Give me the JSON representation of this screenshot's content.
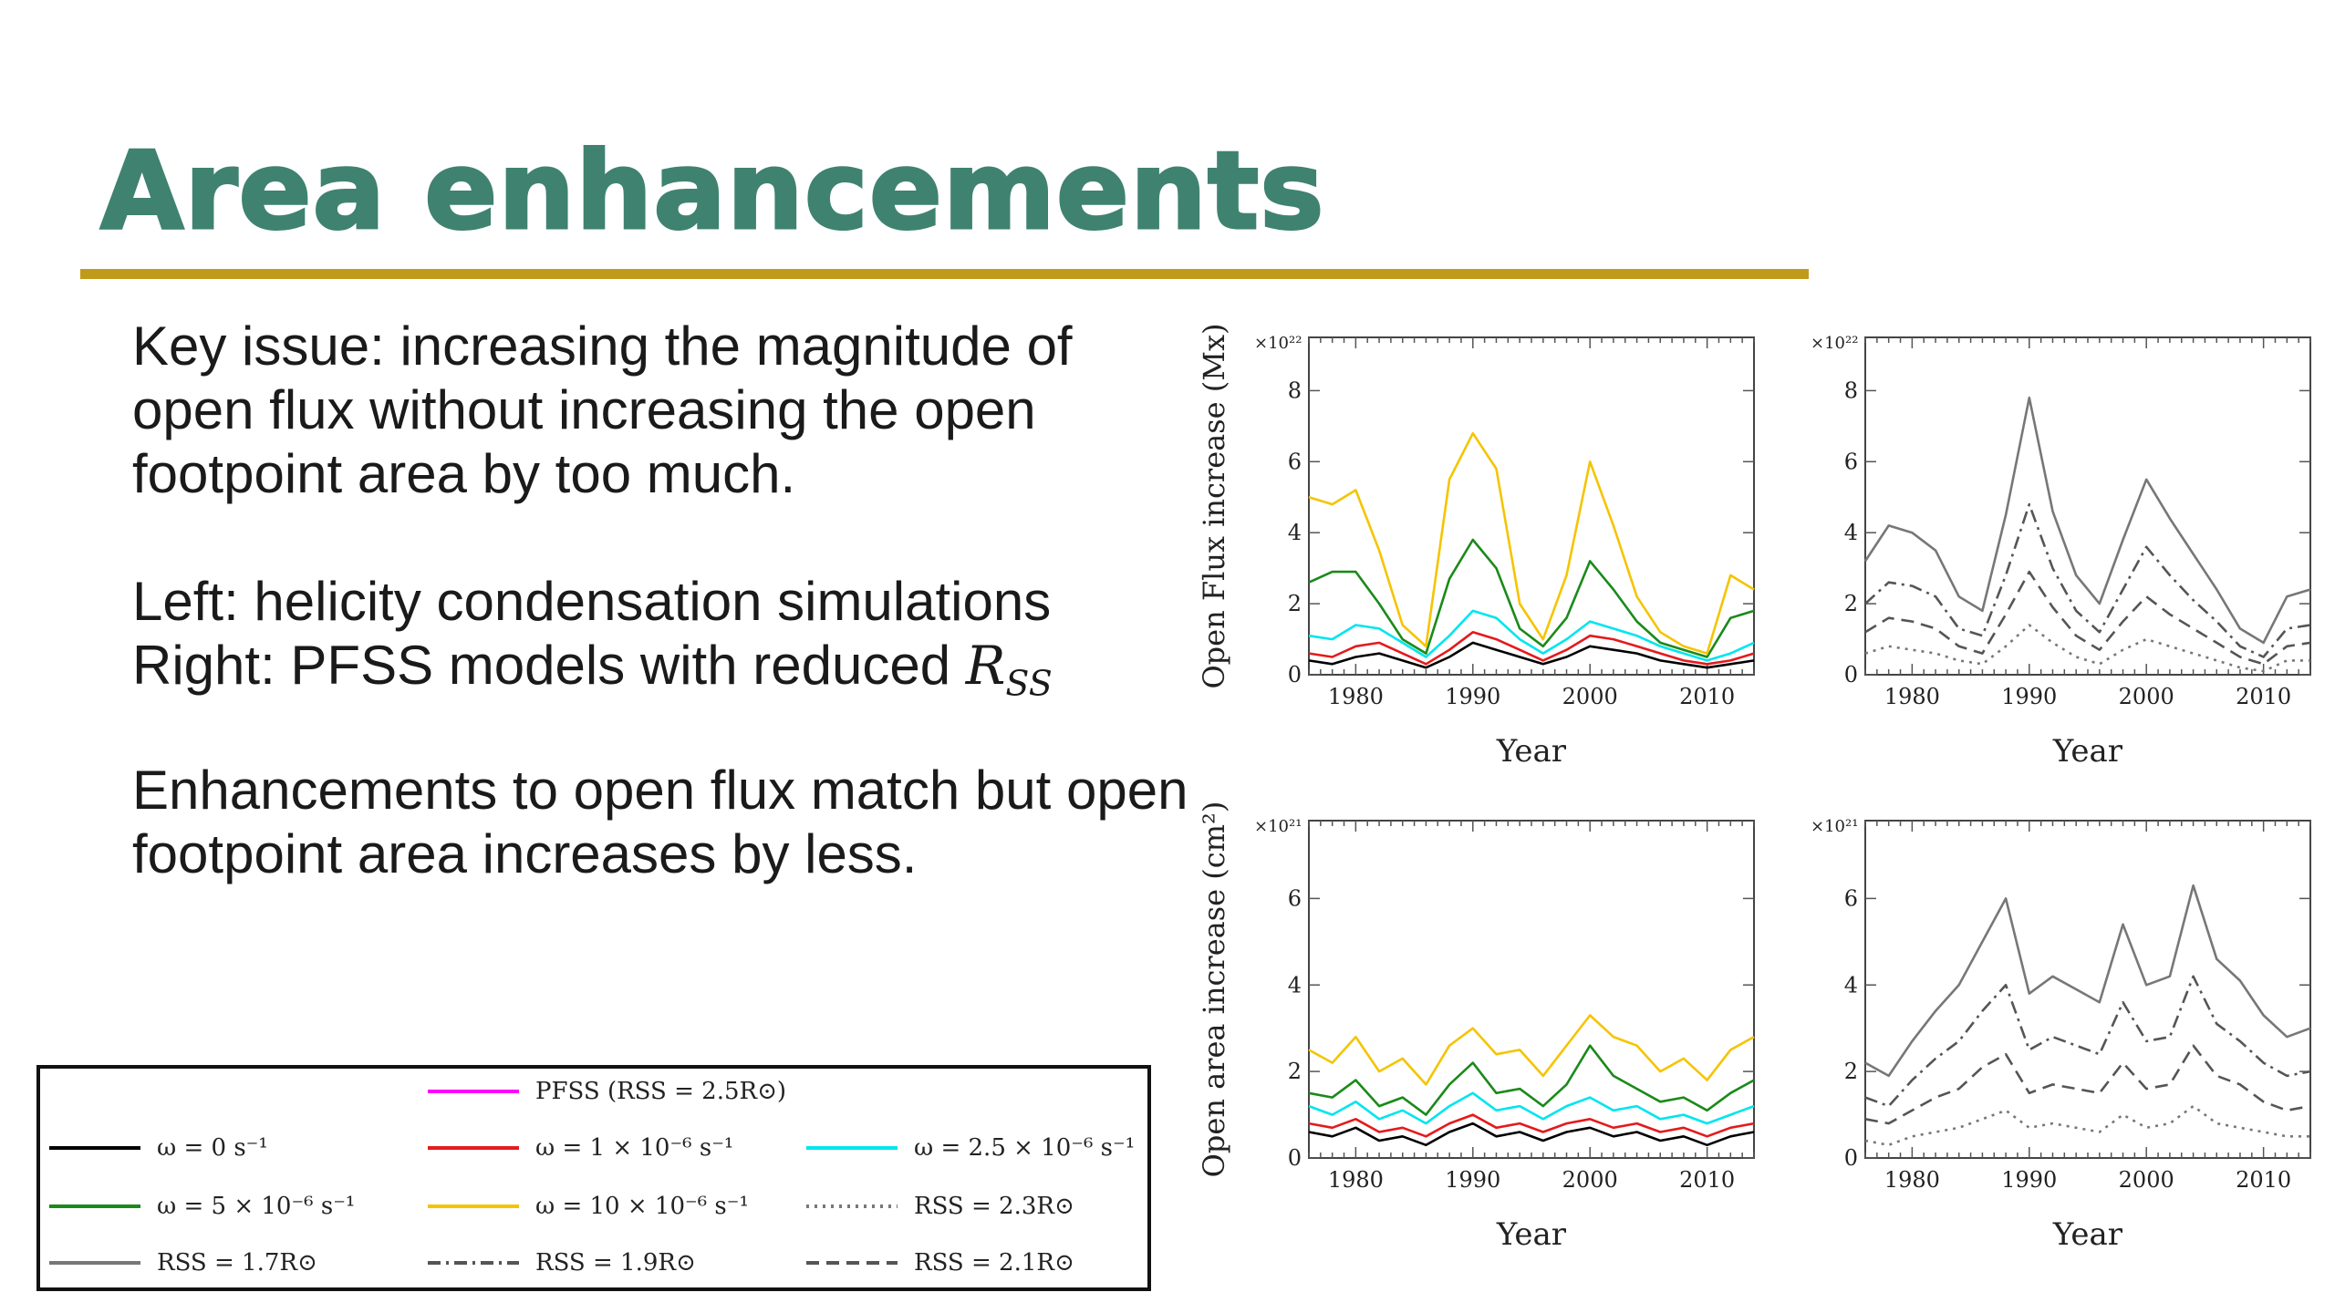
{
  "slide": {
    "title": "Area enhancements",
    "para1": "Key issue: increasing the magnitude of open flux without increasing the open footpoint area by too much.",
    "para2_line1": "Left: helicity condensation simulations",
    "para2_line2_prefix": "Right: PFSS models with reduced ",
    "para2_math_main": "R",
    "para2_math_sub": "SS",
    "para3": "Enhancements to open flux match but open footpoint area increases by less.",
    "colors": {
      "title": "#3f8270",
      "rule": "#c09b1a"
    }
  },
  "legend": {
    "items": [
      {
        "label": "PFSS (RSS = 2.5R⊙)",
        "color": "#ff00ff",
        "dash": "solid"
      },
      {
        "label": "ω = 0 s⁻¹",
        "color": "#000000",
        "dash": "solid"
      },
      {
        "label": "ω = 1 × 10⁻⁶ s⁻¹",
        "color": "#e41a1c",
        "dash": "solid"
      },
      {
        "label": "ω = 2.5 × 10⁻⁶ s⁻¹",
        "color": "#00e5ee",
        "dash": "solid"
      },
      {
        "label": "ω = 5 × 10⁻⁶ s⁻¹",
        "color": "#1a8a1a",
        "dash": "solid"
      },
      {
        "label": "ω = 10 × 10⁻⁶ s⁻¹",
        "color": "#f5c400",
        "dash": "solid"
      },
      {
        "label": "RSS = 2.3R⊙",
        "color": "#777777",
        "dash": "dotted"
      },
      {
        "label": "RSS = 1.7R⊙",
        "color": "#777777",
        "dash": "solid"
      },
      {
        "label": "RSS = 1.9R⊙",
        "color": "#555555",
        "dash": "dashdot"
      },
      {
        "label": "RSS = 2.1R⊙",
        "color": "#555555",
        "dash": "dashed"
      }
    ]
  },
  "chart_data": [
    {
      "type": "line",
      "ylabel": "Open Flux increase (Mx)",
      "xlabel": "Year",
      "multiplier": "×10²²",
      "xlim": [
        1976,
        2014
      ],
      "ylim": [
        0,
        9.5
      ],
      "xticks": [
        1980,
        1990,
        2000,
        2010
      ],
      "yticks": [
        0,
        2,
        4,
        6,
        8
      ],
      "series": [
        {
          "name": "ω = 0 s⁻¹",
          "color": "#000000",
          "dash": "solid",
          "x": [
            1976,
            1978,
            1980,
            1982,
            1984,
            1986,
            1988,
            1990,
            1992,
            1994,
            1996,
            1998,
            2000,
            2002,
            2004,
            2006,
            2008,
            2010,
            2012,
            2014
          ],
          "y": [
            0.4,
            0.3,
            0.5,
            0.6,
            0.4,
            0.2,
            0.5,
            0.9,
            0.7,
            0.5,
            0.3,
            0.5,
            0.8,
            0.7,
            0.6,
            0.4,
            0.3,
            0.2,
            0.3,
            0.4
          ]
        },
        {
          "name": "ω = 1 × 10⁻⁶ s⁻¹",
          "color": "#e41a1c",
          "dash": "solid",
          "x": [
            1976,
            1978,
            1980,
            1982,
            1984,
            1986,
            1988,
            1990,
            1992,
            1994,
            1996,
            1998,
            2000,
            2002,
            2004,
            2006,
            2008,
            2010,
            2012,
            2014
          ],
          "y": [
            0.6,
            0.5,
            0.8,
            0.9,
            0.6,
            0.3,
            0.7,
            1.2,
            1.0,
            0.7,
            0.4,
            0.7,
            1.1,
            1.0,
            0.8,
            0.6,
            0.4,
            0.3,
            0.4,
            0.6
          ]
        },
        {
          "name": "ω = 2.5 × 10⁻⁶ s⁻¹",
          "color": "#00e5ee",
          "dash": "solid",
          "x": [
            1976,
            1978,
            1980,
            1982,
            1984,
            1986,
            1988,
            1990,
            1992,
            1994,
            1996,
            1998,
            2000,
            2002,
            2004,
            2006,
            2008,
            2010,
            2012,
            2014
          ],
          "y": [
            1.1,
            1.0,
            1.4,
            1.3,
            0.9,
            0.5,
            1.1,
            1.8,
            1.6,
            1.0,
            0.6,
            1.0,
            1.5,
            1.3,
            1.1,
            0.8,
            0.6,
            0.4,
            0.6,
            0.9
          ]
        },
        {
          "name": "ω = 5 × 10⁻⁶ s⁻¹",
          "color": "#1a8a1a",
          "dash": "solid",
          "x": [
            1976,
            1978,
            1980,
            1982,
            1984,
            1986,
            1988,
            1990,
            1992,
            1994,
            1996,
            1998,
            2000,
            2002,
            2004,
            2006,
            2008,
            2010,
            2012,
            2014
          ],
          "y": [
            2.6,
            2.9,
            2.9,
            2.0,
            1.0,
            0.6,
            2.7,
            3.8,
            3.0,
            1.3,
            0.8,
            1.6,
            3.2,
            2.4,
            1.5,
            0.9,
            0.7,
            0.5,
            1.6,
            1.8
          ]
        },
        {
          "name": "ω = 10 × 10⁻⁶ s⁻¹",
          "color": "#f5c400",
          "dash": "solid",
          "x": [
            1976,
            1978,
            1980,
            1982,
            1984,
            1986,
            1988,
            1990,
            1992,
            1994,
            1996,
            1998,
            2000,
            2002,
            2004,
            2006,
            2008,
            2010,
            2012,
            2014
          ],
          "y": [
            5.0,
            4.8,
            5.2,
            3.5,
            1.4,
            0.8,
            5.5,
            6.8,
            5.8,
            2.0,
            1.0,
            2.8,
            6.0,
            4.2,
            2.2,
            1.2,
            0.8,
            0.6,
            2.8,
            2.4
          ]
        }
      ]
    },
    {
      "type": "line",
      "ylabel": "",
      "xlabel": "Year",
      "multiplier": "×10²²",
      "xlim": [
        1976,
        2014
      ],
      "ylim": [
        0,
        9.5
      ],
      "xticks": [
        1980,
        1990,
        2000,
        2010
      ],
      "yticks": [
        0,
        2,
        4,
        6,
        8
      ],
      "series": [
        {
          "name": "RSS = 1.7R⊙",
          "color": "#777777",
          "dash": "solid",
          "x": [
            1976,
            1978,
            1980,
            1982,
            1984,
            1986,
            1988,
            1990,
            1992,
            1994,
            1996,
            1998,
            2000,
            2002,
            2004,
            2006,
            2008,
            2010,
            2012,
            2014
          ],
          "y": [
            3.2,
            4.2,
            4.0,
            3.5,
            2.2,
            1.8,
            4.5,
            7.8,
            4.6,
            2.8,
            2.0,
            3.8,
            5.5,
            4.4,
            3.4,
            2.4,
            1.3,
            0.9,
            2.2,
            2.4
          ]
        },
        {
          "name": "RSS = 1.9R⊙",
          "color": "#555555",
          "dash": "dashdot",
          "x": [
            1976,
            1978,
            1980,
            1982,
            1984,
            1986,
            1988,
            1990,
            1992,
            1994,
            1996,
            1998,
            2000,
            2002,
            2004,
            2006,
            2008,
            2010,
            2012,
            2014
          ],
          "y": [
            2.0,
            2.6,
            2.5,
            2.2,
            1.3,
            1.1,
            2.8,
            4.8,
            3.0,
            1.8,
            1.2,
            2.4,
            3.6,
            2.8,
            2.1,
            1.5,
            0.8,
            0.5,
            1.3,
            1.4
          ]
        },
        {
          "name": "RSS = 2.1R⊙",
          "color": "#555555",
          "dash": "dashed",
          "x": [
            1976,
            1978,
            1980,
            1982,
            1984,
            1986,
            1988,
            1990,
            1992,
            1994,
            1996,
            1998,
            2000,
            2002,
            2004,
            2006,
            2008,
            2010,
            2012,
            2014
          ],
          "y": [
            1.2,
            1.6,
            1.5,
            1.3,
            0.8,
            0.6,
            1.7,
            2.9,
            1.9,
            1.1,
            0.7,
            1.5,
            2.2,
            1.7,
            1.3,
            0.9,
            0.5,
            0.3,
            0.8,
            0.9
          ]
        },
        {
          "name": "RSS = 2.3R⊙",
          "color": "#777777",
          "dash": "dotted",
          "x": [
            1976,
            1978,
            1980,
            1982,
            1984,
            1986,
            1988,
            1990,
            1992,
            1994,
            1996,
            1998,
            2000,
            2002,
            2004,
            2006,
            2008,
            2010,
            2012,
            2014
          ],
          "y": [
            0.6,
            0.8,
            0.7,
            0.6,
            0.4,
            0.3,
            0.8,
            1.4,
            0.9,
            0.5,
            0.3,
            0.7,
            1.0,
            0.8,
            0.6,
            0.4,
            0.2,
            0.1,
            0.4,
            0.4
          ]
        }
      ]
    },
    {
      "type": "line",
      "ylabel": "Open area increase (cm²)",
      "xlabel": "Year",
      "multiplier": "×10²¹",
      "xlim": [
        1976,
        2014
      ],
      "ylim": [
        0,
        7.8
      ],
      "xticks": [
        1980,
        1990,
        2000,
        2010
      ],
      "yticks": [
        0,
        2,
        4,
        6
      ],
      "series": [
        {
          "name": "ω = 0 s⁻¹",
          "color": "#000000",
          "dash": "solid",
          "x": [
            1976,
            1978,
            1980,
            1982,
            1984,
            1986,
            1988,
            1990,
            1992,
            1994,
            1996,
            1998,
            2000,
            2002,
            2004,
            2006,
            2008,
            2010,
            2012,
            2014
          ],
          "y": [
            0.6,
            0.5,
            0.7,
            0.4,
            0.5,
            0.3,
            0.6,
            0.8,
            0.5,
            0.6,
            0.4,
            0.6,
            0.7,
            0.5,
            0.6,
            0.4,
            0.5,
            0.3,
            0.5,
            0.6
          ]
        },
        {
          "name": "ω = 1 × 10⁻⁶ s⁻¹",
          "color": "#e41a1c",
          "dash": "solid",
          "x": [
            1976,
            1978,
            1980,
            1982,
            1984,
            1986,
            1988,
            1990,
            1992,
            1994,
            1996,
            1998,
            2000,
            2002,
            2004,
            2006,
            2008,
            2010,
            2012,
            2014
          ],
          "y": [
            0.8,
            0.7,
            0.9,
            0.6,
            0.7,
            0.5,
            0.8,
            1.0,
            0.7,
            0.8,
            0.6,
            0.8,
            0.9,
            0.7,
            0.8,
            0.6,
            0.7,
            0.5,
            0.7,
            0.8
          ]
        },
        {
          "name": "ω = 2.5 × 10⁻⁶ s⁻¹",
          "color": "#00e5ee",
          "dash": "solid",
          "x": [
            1976,
            1978,
            1980,
            1982,
            1984,
            1986,
            1988,
            1990,
            1992,
            1994,
            1996,
            1998,
            2000,
            2002,
            2004,
            2006,
            2008,
            2010,
            2012,
            2014
          ],
          "y": [
            1.2,
            1.0,
            1.3,
            0.9,
            1.1,
            0.8,
            1.2,
            1.5,
            1.1,
            1.2,
            0.9,
            1.2,
            1.4,
            1.1,
            1.2,
            0.9,
            1.0,
            0.8,
            1.0,
            1.2
          ]
        },
        {
          "name": "ω = 5 × 10⁻⁶ s⁻¹",
          "color": "#1a8a1a",
          "dash": "solid",
          "x": [
            1976,
            1978,
            1980,
            1982,
            1984,
            1986,
            1988,
            1990,
            1992,
            1994,
            1996,
            1998,
            2000,
            2002,
            2004,
            2006,
            2008,
            2010,
            2012,
            2014
          ],
          "y": [
            1.5,
            1.4,
            1.8,
            1.2,
            1.4,
            1.0,
            1.7,
            2.2,
            1.5,
            1.6,
            1.2,
            1.7,
            2.6,
            1.9,
            1.6,
            1.3,
            1.4,
            1.1,
            1.5,
            1.8
          ]
        },
        {
          "name": "ω = 10 × 10⁻⁶ s⁻¹",
          "color": "#f5c400",
          "dash": "solid",
          "x": [
            1976,
            1978,
            1980,
            1982,
            1984,
            1986,
            1988,
            1990,
            1992,
            1994,
            1996,
            1998,
            2000,
            2002,
            2004,
            2006,
            2008,
            2010,
            2012,
            2014
          ],
          "y": [
            2.5,
            2.2,
            2.8,
            2.0,
            2.3,
            1.7,
            2.6,
            3.0,
            2.4,
            2.5,
            1.9,
            2.6,
            3.3,
            2.8,
            2.6,
            2.0,
            2.3,
            1.8,
            2.5,
            2.8
          ]
        }
      ]
    },
    {
      "type": "line",
      "ylabel": "",
      "xlabel": "Year",
      "multiplier": "×10²¹",
      "xlim": [
        1976,
        2014
      ],
      "ylim": [
        0,
        7.8
      ],
      "xticks": [
        1980,
        1990,
        2000,
        2010
      ],
      "yticks": [
        0,
        2,
        4,
        6
      ],
      "series": [
        {
          "name": "RSS = 1.7R⊙",
          "color": "#777777",
          "dash": "solid",
          "x": [
            1976,
            1978,
            1980,
            1982,
            1984,
            1986,
            1988,
            1990,
            1992,
            1994,
            1996,
            1998,
            2000,
            2002,
            2004,
            2006,
            2008,
            2010,
            2012,
            2014
          ],
          "y": [
            2.2,
            1.9,
            2.7,
            3.4,
            4.0,
            5.0,
            6.0,
            3.8,
            4.2,
            3.9,
            3.6,
            5.4,
            4.0,
            4.2,
            6.3,
            4.6,
            4.1,
            3.3,
            2.8,
            3.0
          ]
        },
        {
          "name": "RSS = 1.9R⊙",
          "color": "#555555",
          "dash": "dashdot",
          "x": [
            1976,
            1978,
            1980,
            1982,
            1984,
            1986,
            1988,
            1990,
            1992,
            1994,
            1996,
            1998,
            2000,
            2002,
            2004,
            2006,
            2008,
            2010,
            2012,
            2014
          ],
          "y": [
            1.4,
            1.2,
            1.8,
            2.3,
            2.7,
            3.4,
            4.0,
            2.5,
            2.8,
            2.6,
            2.4,
            3.6,
            2.7,
            2.8,
            4.2,
            3.1,
            2.7,
            2.2,
            1.9,
            2.0
          ]
        },
        {
          "name": "RSS = 2.1R⊙",
          "color": "#555555",
          "dash": "dashed",
          "x": [
            1976,
            1978,
            1980,
            1982,
            1984,
            1986,
            1988,
            1990,
            1992,
            1994,
            1996,
            1998,
            2000,
            2002,
            2004,
            2006,
            2008,
            2010,
            2012,
            2014
          ],
          "y": [
            0.9,
            0.8,
            1.1,
            1.4,
            1.6,
            2.1,
            2.4,
            1.5,
            1.7,
            1.6,
            1.5,
            2.2,
            1.6,
            1.7,
            2.6,
            1.9,
            1.7,
            1.3,
            1.1,
            1.2
          ]
        },
        {
          "name": "RSS = 2.3R⊙",
          "color": "#777777",
          "dash": "dotted",
          "x": [
            1976,
            1978,
            1980,
            1982,
            1984,
            1986,
            1988,
            1990,
            1992,
            1994,
            1996,
            1998,
            2000,
            2002,
            2004,
            2006,
            2008,
            2010,
            2012,
            2014
          ],
          "y": [
            0.4,
            0.3,
            0.5,
            0.6,
            0.7,
            0.9,
            1.1,
            0.7,
            0.8,
            0.7,
            0.6,
            1.0,
            0.7,
            0.8,
            1.2,
            0.8,
            0.7,
            0.6,
            0.5,
            0.5
          ]
        }
      ]
    }
  ]
}
